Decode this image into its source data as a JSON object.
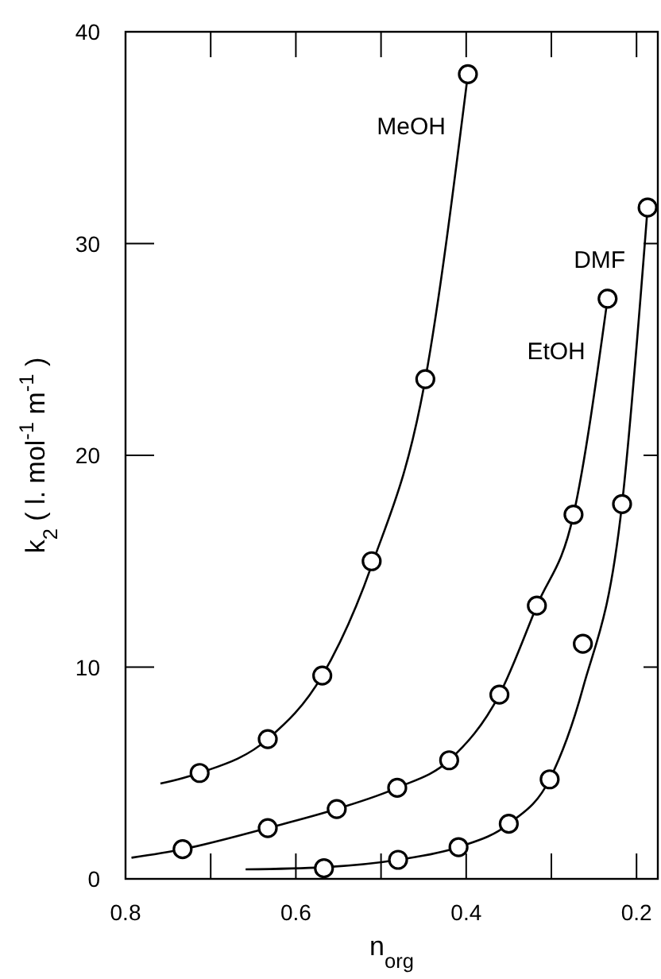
{
  "chart_data": {
    "type": "scatter",
    "xlabel": "n$_{org}$",
    "ylabel": "k$_{2}$ ( l. mol$^{-1}$ m$^{-1}$ )",
    "xlim": [
      0.8,
      0.175
    ],
    "ylim": [
      0,
      40
    ],
    "xticks": [
      0.8,
      {
        "value": 0.7,
        "label": null
      },
      0.6,
      {
        "value": 0.5,
        "label": null
      },
      0.4,
      {
        "value": 0.3,
        "label": null
      },
      0.2
    ],
    "yticks": [
      0,
      10,
      20,
      30,
      40
    ],
    "grid": false,
    "marker": "circle",
    "series": [
      {
        "type": "scatter",
        "color": "#000000",
        "x": [
          0.713,
          0.633,
          0.569,
          0.511,
          0.448,
          0.398
        ],
        "values": [
          5.0,
          6.6,
          9.6,
          15.0,
          23.6,
          38.0
        ]
      },
      {
        "type": "scatter",
        "color": "#000000",
        "x": [
          0.733,
          0.633,
          0.552,
          0.481,
          0.42,
          0.361,
          0.317,
          0.274,
          0.234
        ],
        "values": [
          1.4,
          2.4,
          3.3,
          4.3,
          5.6,
          8.7,
          12.9,
          17.2,
          27.4
        ]
      },
      {
        "type": "scatter",
        "color": "#000000",
        "x": [
          0.567,
          0.48,
          0.409,
          0.35,
          0.302,
          0.263,
          0.217,
          0.187
        ],
        "values": [
          0.5,
          0.9,
          1.5,
          2.6,
          4.7,
          11.1,
          17.7,
          31.7
        ]
      },
      {
        "type": "line",
        "name": "MeOH",
        "color": "#000000",
        "marker": "none",
        "line_style": "solid",
        "x": [
          0.759,
          0.713,
          0.633,
          0.569,
          0.511,
          0.448,
          0.398
        ],
        "values": [
          4.5,
          5.0,
          6.6,
          9.6,
          14.8,
          23.6,
          38.0
        ]
      },
      {
        "type": "line",
        "name": "EtOH",
        "color": "#000000",
        "marker": "none",
        "line_style": "solid",
        "x": [
          0.793,
          0.733,
          0.633,
          0.552,
          0.481,
          0.42,
          0.361,
          0.317,
          0.274,
          0.234
        ],
        "values": [
          1.0,
          1.4,
          2.4,
          3.3,
          4.3,
          5.6,
          8.7,
          12.9,
          17.2,
          27.4
        ]
      },
      {
        "type": "line",
        "name": "DMF",
        "color": "#000000",
        "marker": "none",
        "line_style": "solid",
        "x": [
          0.659,
          0.567,
          0.48,
          0.409,
          0.35,
          0.302,
          0.263,
          0.217,
          0.187
        ],
        "values": [
          0.45,
          0.55,
          0.9,
          1.5,
          2.6,
          4.7,
          9.0,
          17.7,
          31.7
        ]
      }
    ]
  }
}
